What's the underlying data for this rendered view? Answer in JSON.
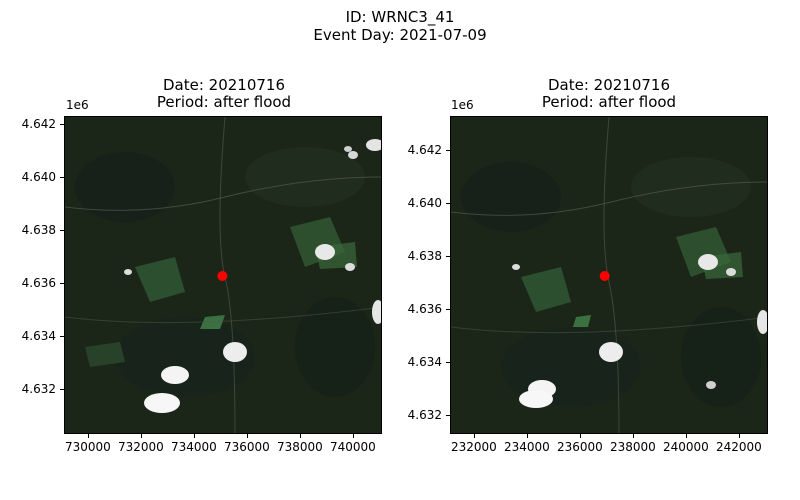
{
  "figure": {
    "title_line1": "ID: WRNC3_41",
    "title_line2": "Event Day: 2021-07-09"
  },
  "panels": [
    {
      "title_line1": "Date: 20210716",
      "title_line2": "Period: after flood",
      "y_offset_label": "1e6",
      "y_ticks": [
        "4.642",
        "4.640",
        "4.638",
        "4.636",
        "4.634",
        "4.632"
      ],
      "x_ticks": [
        "730000",
        "732000",
        "734000",
        "736000",
        "738000",
        "740000"
      ],
      "marker": {
        "x": 735040,
        "y": 4636300,
        "color": "#ff0000"
      }
    },
    {
      "title_line1": "Date: 20210716",
      "title_line2": "Period: after flood",
      "y_offset_label": "1e6",
      "y_ticks": [
        "4.642",
        "4.640",
        "4.638",
        "4.636",
        "4.634",
        "4.632"
      ],
      "x_ticks": [
        "232000",
        "234000",
        "236000",
        "238000",
        "240000",
        "242000"
      ],
      "marker": {
        "x": 236900,
        "y": 4637300,
        "color": "#ff0000"
      }
    }
  ]
}
